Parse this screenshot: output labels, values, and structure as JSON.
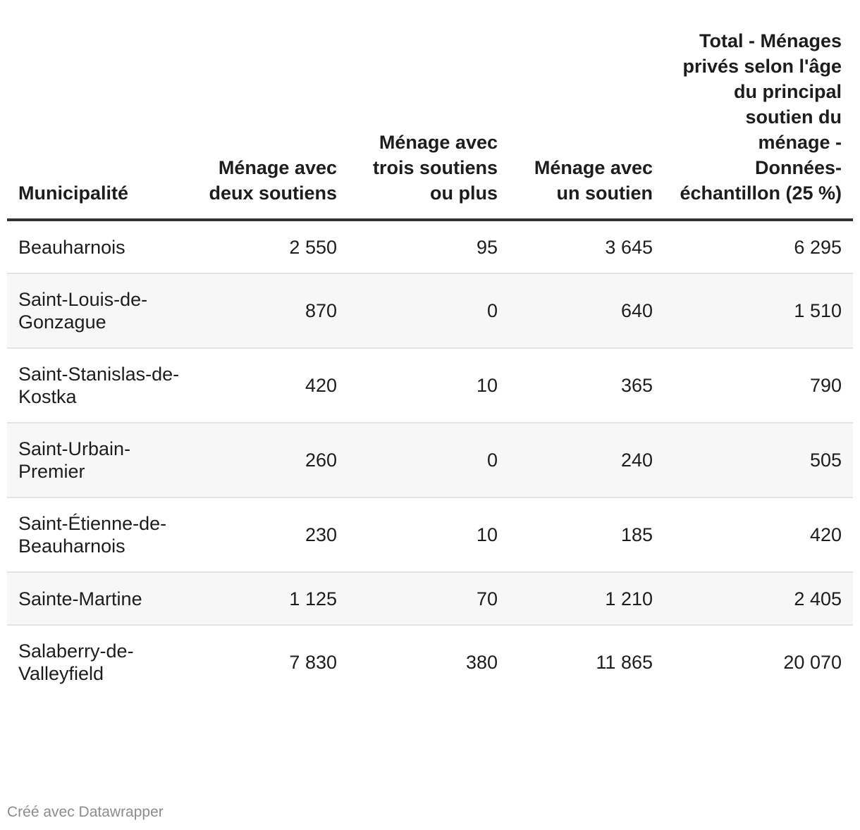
{
  "chart_data": {
    "type": "table",
    "columns": [
      "Municipalité",
      "Ménage avec deux soutiens",
      "Ménage avec trois soutiens ou plus",
      "Ménage avec un soutien",
      "Total - Ménages privés selon l'âge du principal soutien du ménage - Données-échantillon (25 %)"
    ],
    "rows": [
      [
        "Beauharnois",
        "2 550",
        "95",
        "3 645",
        "6 295"
      ],
      [
        "Saint-Louis-de-Gonzague",
        "870",
        "0",
        "640",
        "1 510"
      ],
      [
        "Saint-Stanislas-de-Kostka",
        "420",
        "10",
        "365",
        "790"
      ],
      [
        "Saint-Urbain-Premier",
        "260",
        "0",
        "240",
        "505"
      ],
      [
        "Saint-Étienne-de-Beauharnois",
        "230",
        "10",
        "185",
        "420"
      ],
      [
        "Sainte-Martine",
        "1 125",
        "70",
        "1 210",
        "2 405"
      ],
      [
        "Salaberry-de-Valleyfield",
        "7 830",
        "380",
        "11 865",
        "20 070"
      ]
    ],
    "series": [
      {
        "name": "Ménage avec deux soutiens",
        "values": [
          2550,
          870,
          420,
          260,
          230,
          1125,
          7830
        ]
      },
      {
        "name": "Ménage avec trois soutiens ou plus",
        "values": [
          95,
          0,
          10,
          0,
          10,
          70,
          380
        ]
      },
      {
        "name": "Ménage avec un soutien",
        "values": [
          3645,
          640,
          365,
          240,
          185,
          1210,
          11865
        ]
      },
      {
        "name": "Total - Ménages privés selon l'âge du principal soutien du ménage - Données-échantillon (25 %)",
        "values": [
          6295,
          1510,
          790,
          505,
          420,
          2405,
          20070
        ]
      }
    ]
  },
  "footer": {
    "credit": "Créé avec Datawrapper"
  },
  "colors": {
    "text": "#1d1d1d",
    "header_rule": "#333333",
    "row_divider": "#e4e4e4",
    "stripe": "#f7f7f7",
    "footer_text": "#8c8c8c"
  }
}
